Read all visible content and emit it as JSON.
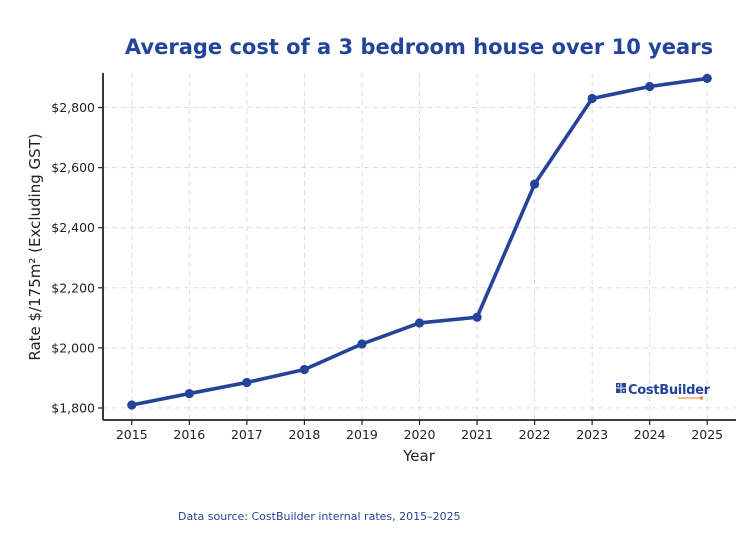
{
  "chart_data": {
    "type": "line",
    "title": "Average cost of a 3 bedroom house over 10 years",
    "xlabel": "Year",
    "ylabel": "Rate $/175m² (Excluding GST)",
    "x": [
      2015,
      2016,
      2017,
      2018,
      2019,
      2020,
      2021,
      2022,
      2023,
      2024,
      2025
    ],
    "x_tick_labels": [
      "2015",
      "2016",
      "2017",
      "2018",
      "2019",
      "2020",
      "2021",
      "2022",
      "2023",
      "2024",
      "2025"
    ],
    "series": [
      {
        "name": "Average cost",
        "values": [
          1810,
          1848,
          1885,
          1928,
          2013,
          2083,
          2102,
          2545,
          2830,
          2870,
          2897
        ]
      }
    ],
    "y_ticks": [
      1800,
      2000,
      2200,
      2400,
      2600,
      2800
    ],
    "y_tick_labels": [
      "$1,800",
      "$2,000",
      "$2,200",
      "$2,400",
      "$2,600",
      "$2,800"
    ],
    "xlim": [
      2014.5,
      2025.5
    ],
    "ylim": [
      1760,
      2915
    ],
    "grid": true,
    "legend": "none",
    "line_color": "#24449a"
  },
  "logo": {
    "text": "CostBuilder",
    "color": "#24449a",
    "accent": "#f07d2d"
  },
  "footer": {
    "source": "Data source: CostBuilder internal rates, 2015–2025"
  }
}
